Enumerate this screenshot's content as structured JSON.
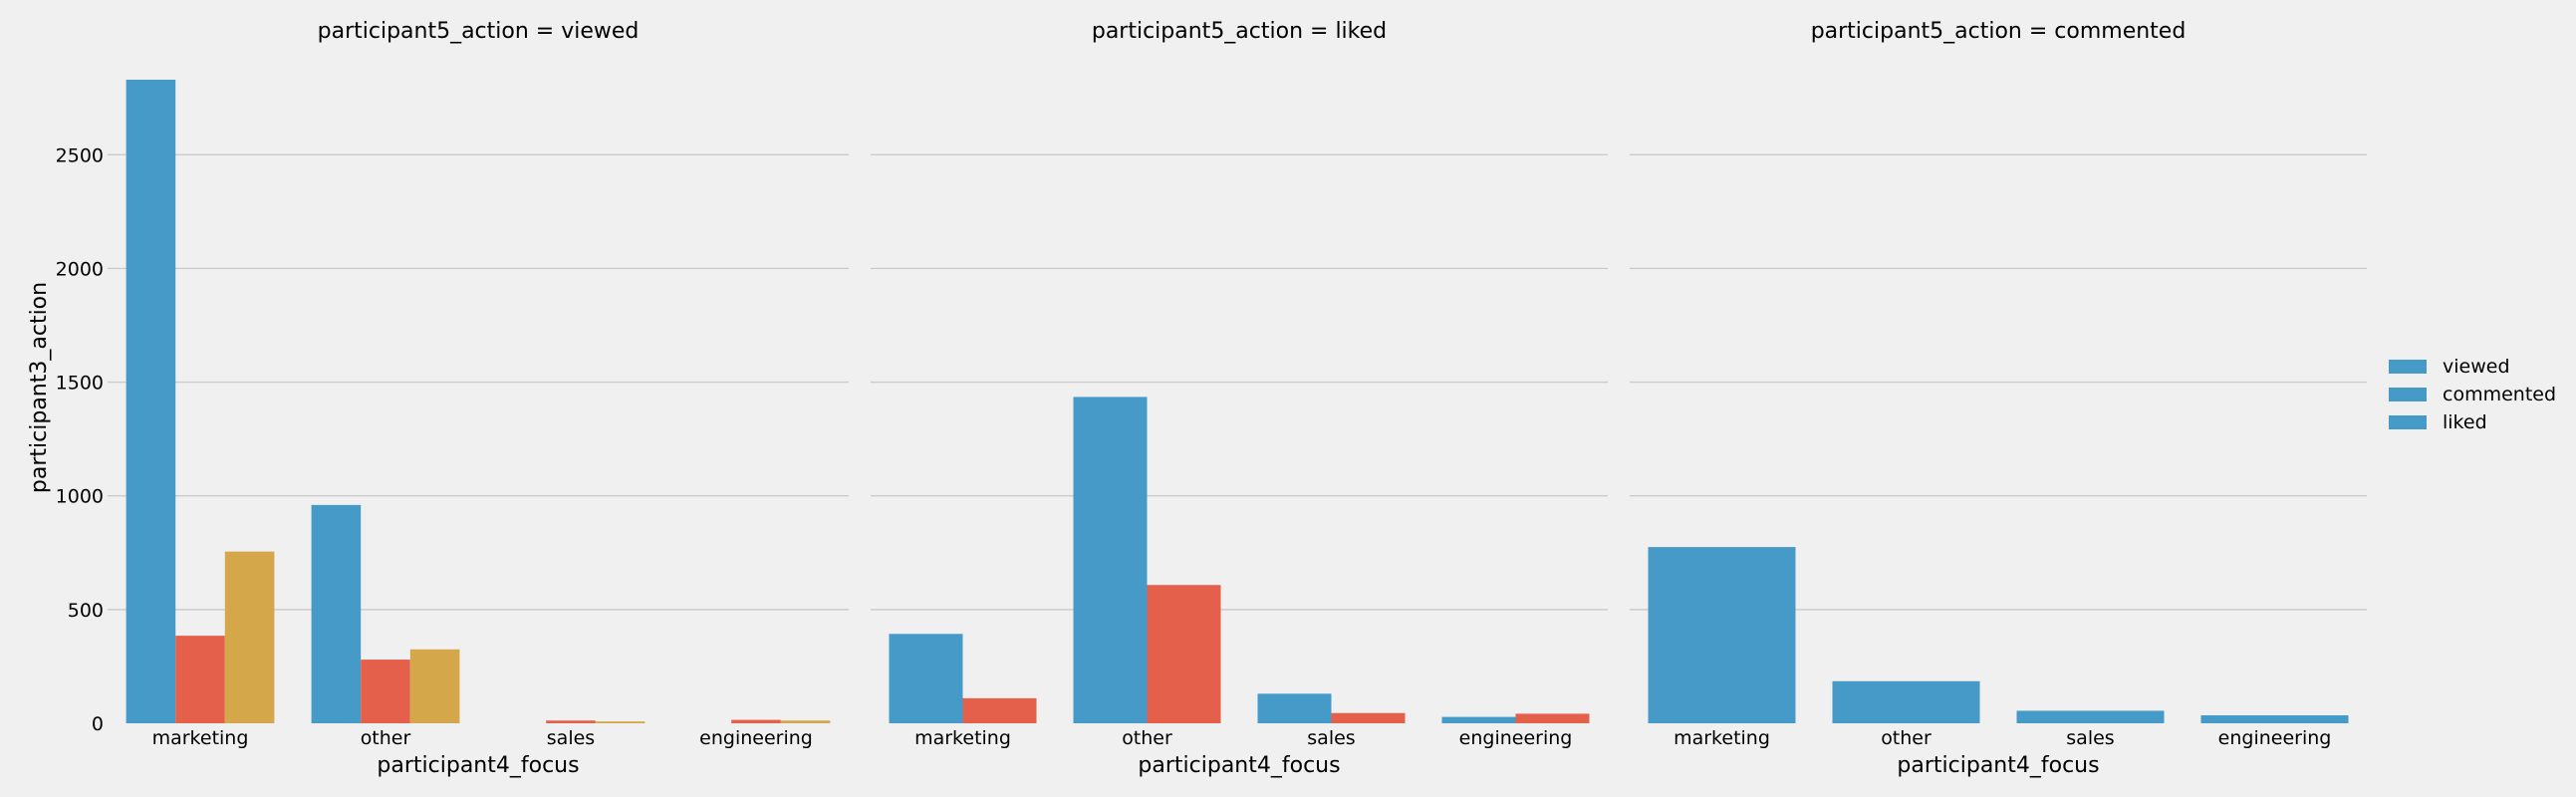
{
  "chart_data": {
    "type": "bar",
    "ylabel": "participant3_action",
    "xlabel": "participant4_focus",
    "ylim": [
      0,
      2830
    ],
    "yticks": [
      0,
      500,
      1000,
      1500,
      2000,
      2500
    ],
    "grid": true,
    "legend_position": "right",
    "legend": [
      "viewed",
      "commented",
      "liked"
    ],
    "categories": [
      "marketing",
      "other",
      "sales",
      "engineering"
    ],
    "colors": {
      "blue": "#459ac8",
      "red": "#e5604a",
      "gold": "#d4a74b"
    },
    "panels": [
      {
        "title": "participant5_action = viewed",
        "series": [
          {
            "color": "#459ac8",
            "values": [
              2830,
              960,
              0,
              0
            ]
          },
          {
            "color": "#e5604a",
            "values": [
              385,
              280,
              12,
              15
            ]
          },
          {
            "color": "#d4a74b",
            "values": [
              755,
              325,
              8,
              12
            ]
          }
        ]
      },
      {
        "title": "participant5_action = liked",
        "series": [
          {
            "color": "#459ac8",
            "values": [
              393,
              1435,
              130,
              28
            ]
          },
          {
            "color": "#e5604a",
            "values": [
              110,
              608,
              45,
              42
            ]
          }
        ]
      },
      {
        "title": "participant5_action = commented",
        "series": [
          {
            "color": "#459ac8",
            "values": [
              775,
              185,
              55,
              35
            ]
          }
        ]
      }
    ]
  }
}
